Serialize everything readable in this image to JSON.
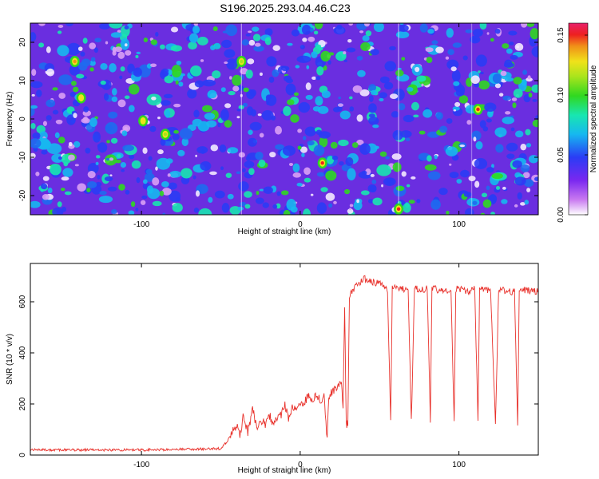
{
  "title": "S196.2025.293.04.46.C23",
  "chart_data": [
    {
      "type": "heatmap",
      "xlabel": "Height of straight line (km)",
      "ylabel": "Frequency (Hz)",
      "xlim": [
        -170,
        150
      ],
      "ylim": [
        -25,
        25
      ],
      "xticks": [
        -100,
        0,
        100
      ],
      "yticks": [
        -20,
        -10,
        0,
        10,
        20
      ],
      "colorbar": {
        "label": "Normalized spectral amplitude",
        "range": [
          0,
          0.16
        ],
        "ticks": [
          "0.00",
          "0.05",
          "0.10",
          "0.15"
        ],
        "colormap": "rainbow (white-purple-blue-cyan-green-yellow-red)"
      },
      "hot_spots": [
        {
          "x": 14,
          "y": -11.5,
          "amplitude": 0.15
        },
        {
          "x": 62,
          "y": -23.5,
          "amplitude": 0.15
        },
        {
          "x": 112,
          "y": 2.5,
          "amplitude": 0.15
        },
        {
          "x": -142,
          "y": 15,
          "amplitude": 0.13
        },
        {
          "x": -99,
          "y": -0.5,
          "amplitude": 0.11
        },
        {
          "x": -138,
          "y": 5.5,
          "amplitude": 0.1
        },
        {
          "x": -37,
          "y": 15,
          "amplitude": 0.09
        },
        {
          "x": -85,
          "y": -4,
          "amplitude": 0.08
        }
      ]
    },
    {
      "type": "line",
      "xlabel": "Height of straight line (km)",
      "ylabel": "SNR (10 * v/v)",
      "xlim": [
        -170,
        150
      ],
      "ylim": [
        0,
        750
      ],
      "xticks": [
        -100,
        0,
        100
      ],
      "yticks": [
        0,
        200,
        400,
        600
      ],
      "series": [
        {
          "color": "#e8302a",
          "x": [
            -170,
            -100,
            -50,
            -45,
            -40,
            -38,
            -36,
            -33,
            -30,
            -27,
            -25,
            -22,
            -20,
            -17,
            -15,
            -12,
            -10,
            -7,
            -5,
            -2,
            0,
            3,
            5,
            8,
            10,
            13,
            15,
            17,
            18,
            20,
            22,
            24,
            26,
            27,
            28,
            29,
            30,
            31,
            35,
            40,
            45,
            50,
            55,
            57,
            58,
            60,
            65,
            68,
            70,
            72,
            75,
            80,
            82,
            83,
            85,
            90,
            95,
            97,
            98,
            100,
            105,
            110,
            112,
            113,
            115,
            120,
            123,
            125,
            127,
            130,
            135,
            137,
            138,
            140,
            145,
            150
          ],
          "y": [
            20,
            20,
            25,
            60,
            120,
            80,
            150,
            90,
            180,
            100,
            140,
            120,
            170,
            110,
            150,
            160,
            200,
            140,
            190,
            180,
            200,
            210,
            230,
            220,
            240,
            210,
            240,
            60,
            230,
            250,
            260,
            270,
            280,
            200,
            580,
            120,
            120,
            620,
            660,
            690,
            680,
            670,
            650,
            120,
            660,
            660,
            650,
            660,
            130,
            650,
            650,
            650,
            130,
            650,
            650,
            640,
            640,
            120,
            650,
            650,
            640,
            650,
            120,
            660,
            650,
            640,
            120,
            640,
            650,
            640,
            640,
            120,
            650,
            650,
            640,
            640
          ]
        }
      ]
    }
  ]
}
